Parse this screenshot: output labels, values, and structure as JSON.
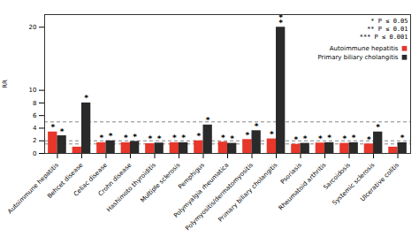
{
  "chart_data": {
    "type": "bar",
    "categories": [
      "Autoimmune hepatitis",
      "Behcet disease",
      "Celiac disease",
      "Crohn disease",
      "Hashimoto thyroiditis",
      "Multiple sclerosis",
      "Pemphigus",
      "Polymyalgia rheumatica",
      "Polymyositis/dermatomyositis",
      "Primary biliary cholangitis",
      "Psoriasis",
      "Rheumatoid arthritis",
      "Sarcoidosis",
      "Systemic sclerosis",
      "Ulcerative colitis"
    ],
    "series": [
      {
        "name": "Autoimmune hepatitis",
        "color": "#e8362a",
        "values": [
          3.4,
          1.0,
          1.7,
          1.7,
          1.55,
          1.7,
          2.0,
          1.8,
          2.2,
          2.3,
          1.45,
          1.65,
          1.6,
          1.5,
          1.0
        ],
        "stars": [
          "*",
          null,
          "*",
          "*",
          "*",
          "*",
          "*",
          "*",
          "*",
          "*",
          "*",
          "*",
          "*",
          "*",
          null
        ]
      },
      {
        "name": "Primary biliary cholangitis",
        "color": "#2a2a2a",
        "values": [
          2.8,
          8.0,
          2.0,
          1.9,
          1.65,
          1.7,
          4.5,
          1.6,
          3.6,
          20.0,
          1.6,
          1.7,
          1.7,
          3.4,
          1.7
        ],
        "stars": [
          "*",
          "*",
          "*",
          "*",
          "*",
          "*",
          "*",
          "*",
          "*",
          "**",
          "*",
          "*",
          "*",
          "*",
          "*"
        ]
      }
    ],
    "ylabel": "RR",
    "hlines": [
      1.5,
      2.0,
      5.0
    ],
    "annotations": [
      "* P ≤ 0.05",
      "** P ≤ 0.01",
      "*** P ≤ 0.001"
    ],
    "ylim": [
      0,
      22
    ],
    "yticks": [
      0,
      2,
      4,
      6,
      8,
      10,
      20
    ],
    "legend": "upper right",
    "grid": false
  }
}
